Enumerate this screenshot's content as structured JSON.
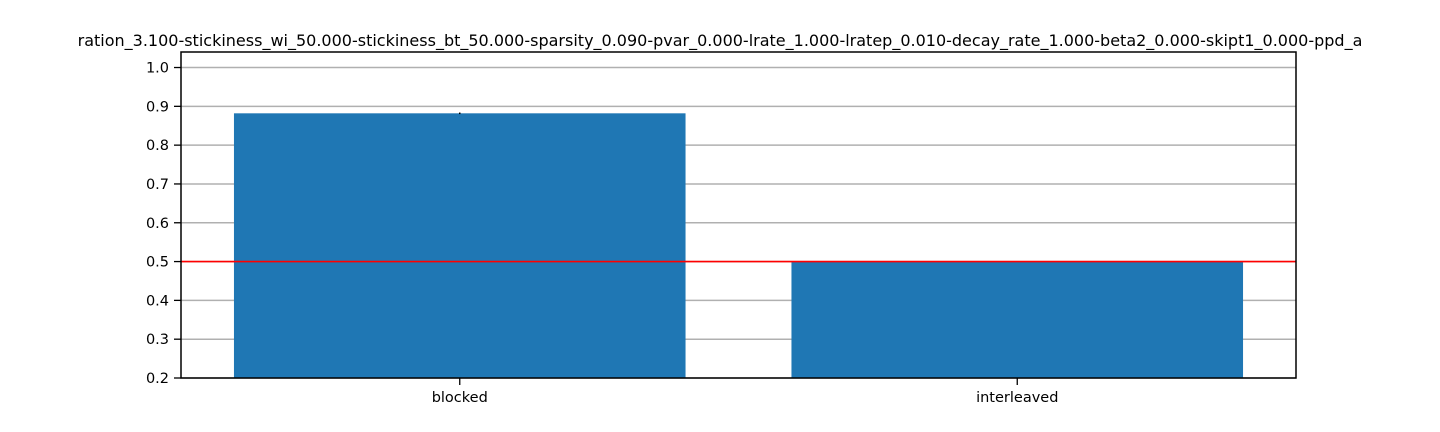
{
  "chart_data": {
    "type": "bar",
    "title": "ration_3.100-stickiness_wi_50.000-stickiness_bt_50.000-sparsity_0.090-pvar_0.000-lrate_1.000-lratep_0.010-decay_rate_1.000-beta2_0.000-skipt1_0.000-ppd_a",
    "xlabel": "",
    "ylabel": "",
    "categories": [
      "blocked",
      "interleaved"
    ],
    "values": [
      0.882,
      0.5
    ],
    "errors": [
      0.002,
      0.0
    ],
    "ylim": [
      0.2,
      1.04
    ],
    "yticks": [
      0.2,
      0.3,
      0.4,
      0.5,
      0.6,
      0.7,
      0.8,
      0.9,
      1.0
    ],
    "ytick_labels": [
      "0.2",
      "0.3",
      "0.4",
      "0.5",
      "0.6",
      "0.7",
      "0.8",
      "0.9",
      "1.0"
    ],
    "reference_line": 0.5,
    "grid": "horizontal",
    "colors": {
      "bar": "#1f77b4",
      "reference_line": "#ff0000",
      "grid": "#b0b0b0"
    }
  }
}
